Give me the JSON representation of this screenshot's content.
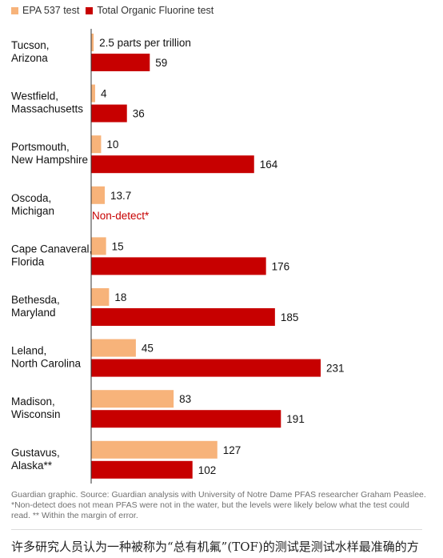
{
  "legend": {
    "epa_label": "EPA 537 test",
    "tof_label": "Total Organic Fluorine test"
  },
  "colors": {
    "epa": "#f7b37a",
    "tof": "#c70000",
    "non_detect": "#c70000",
    "axis": "#333333"
  },
  "chart_data": {
    "type": "bar",
    "orientation": "horizontal",
    "unit": "parts per trillion",
    "categories": [
      [
        "Tucson,",
        "Arizona"
      ],
      [
        "Westfield,",
        "Massachusetts"
      ],
      [
        "Portsmouth,",
        "New Hampshire"
      ],
      [
        "Oscoda,",
        "Michigan"
      ],
      [
        "Cape Canaveral,",
        "Florida"
      ],
      [
        "Bethesda,",
        "Maryland"
      ],
      [
        "Leland,",
        "North Carolina"
      ],
      [
        "Madison,",
        "Wisconsin"
      ],
      [
        "Gustavus,",
        "Alaska**"
      ]
    ],
    "series": [
      {
        "name": "EPA 537 test",
        "values": [
          2.5,
          4,
          10,
          13.7,
          15,
          18,
          45,
          83,
          127
        ],
        "labels": [
          "2.5 parts per trillion",
          "4",
          "10",
          "13.7",
          "15",
          "18",
          "45",
          "83",
          "127"
        ]
      },
      {
        "name": "Total Organic Fluorine test",
        "values": [
          59,
          36,
          164,
          null,
          176,
          185,
          231,
          191,
          102
        ],
        "labels": [
          "59",
          "36",
          "164",
          "Non-detect*",
          "176",
          "185",
          "231",
          "191",
          "102"
        ]
      }
    ],
    "xlim": [
      0,
      231
    ],
    "grid": false,
    "legend_position": "top-left"
  },
  "footer": {
    "source": "Guardian graphic. Source: Guardian analysis with University of Notre Dame PFAS researcher Graham Peaslee.",
    "note": "*Non-detect does not mean PFAS were not in the water, but the levels were likely below what the test could read. ** Within the margin of error."
  },
  "article_text": "许多研究人员认为一种被称为“总有机氟”(TOF)的测试是测试水样最准确的方"
}
